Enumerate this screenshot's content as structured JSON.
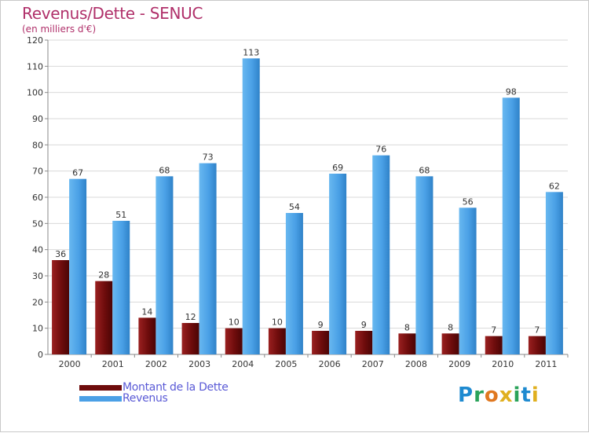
{
  "header": {
    "title": "Revenus/Dette - SENUC",
    "subtitle": "(en milliers d'€)"
  },
  "legend": {
    "items": [
      {
        "label": "Montant de la Dette",
        "color": "#7a1010"
      },
      {
        "label": "Revenus",
        "color": "#4aa0e6"
      }
    ]
  },
  "logo": {
    "text": "Proxiti",
    "letters": [
      {
        "char": "P",
        "color": "#1e8ad0"
      },
      {
        "char": "r",
        "color": "#2aa35a"
      },
      {
        "char": "o",
        "color": "#e07820"
      },
      {
        "char": "x",
        "color": "#e0b020"
      },
      {
        "char": "i",
        "color": "#2aa35a"
      },
      {
        "char": "t",
        "color": "#1e8ad0"
      },
      {
        "char": "i",
        "color": "#e0b020"
      }
    ]
  },
  "chart_data": {
    "type": "bar",
    "title": "Revenus/Dette - SENUC",
    "subtitle": "(en milliers d'€)",
    "xlabel": "",
    "ylabel": "",
    "ylim": [
      0,
      120
    ],
    "yticks": [
      0,
      10,
      20,
      30,
      40,
      50,
      60,
      70,
      80,
      90,
      100,
      110,
      120
    ],
    "grid": true,
    "categories": [
      "2000",
      "2001",
      "2002",
      "2003",
      "2004",
      "2005",
      "2006",
      "2007",
      "2008",
      "2009",
      "2010",
      "2011"
    ],
    "series": [
      {
        "name": "Montant de la Dette",
        "color": "#7a1010",
        "values": [
          36,
          28,
          14,
          12,
          10,
          10,
          9,
          9,
          8,
          8,
          7,
          7
        ]
      },
      {
        "name": "Revenus",
        "color": "#4aa0e6",
        "values": [
          67,
          51,
          68,
          73,
          113,
          54,
          69,
          76,
          68,
          56,
          98,
          62
        ]
      }
    ]
  }
}
